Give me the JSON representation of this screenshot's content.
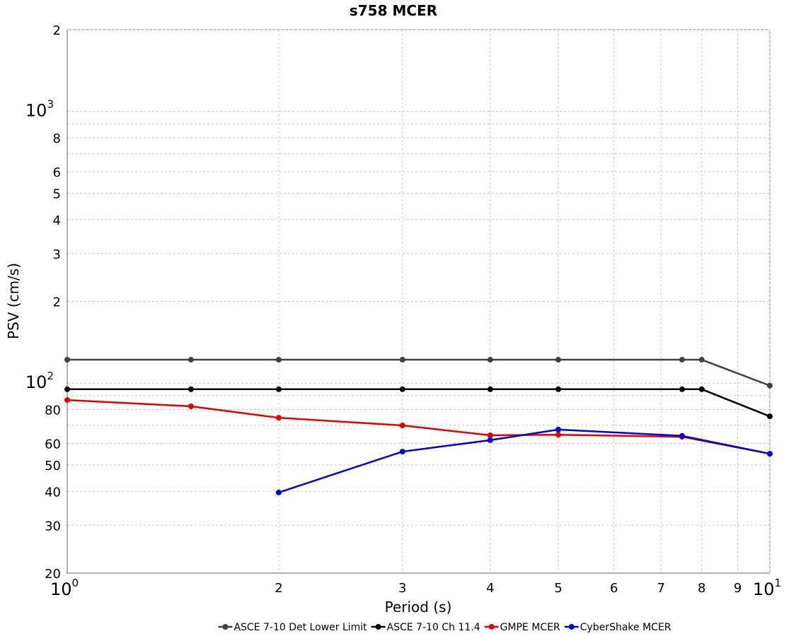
{
  "chart_data": {
    "type": "line",
    "title": "s758 MCER",
    "xlabel": "Period (s)",
    "ylabel": "PSV (cm/s)",
    "xscale": "log",
    "yscale": "log",
    "grid": true,
    "legend": "bottom",
    "xlim": [
      1,
      10
    ],
    "ylim": [
      20,
      2000
    ],
    "xticks": [
      {
        "value": 1,
        "label": "10",
        "sup": "0"
      },
      2,
      3,
      4,
      5,
      6,
      7,
      8,
      9,
      {
        "value": 10,
        "label": "10",
        "sup": "1"
      }
    ],
    "yticks": [
      20,
      30,
      40,
      50,
      60,
      80,
      {
        "value": 100,
        "label": "10",
        "sup": "2"
      },
      {
        "value": 200,
        "label": "2"
      },
      {
        "value": 300,
        "label": "3"
      },
      {
        "value": 400,
        "label": "4"
      },
      {
        "value": 500,
        "label": "5"
      },
      {
        "value": 600,
        "label": "6"
      },
      {
        "value": 800,
        "label": "8"
      },
      {
        "value": 1000,
        "label": "10",
        "sup": "3"
      },
      {
        "value": 2000,
        "label": "2"
      }
    ],
    "yminorticks": [
      70,
      90,
      700,
      900
    ],
    "series": [
      {
        "name": "ASCE 7-10 Det Lower Limit",
        "color": "#404040",
        "x": [
          1,
          1.5,
          2,
          3,
          4,
          5,
          7.5,
          8,
          10
        ],
        "values": [
          122,
          122,
          122,
          122,
          122,
          122,
          122,
          122,
          98
        ]
      },
      {
        "name": "ASCE 7-10 Ch 11.4",
        "color": "#000000",
        "x": [
          1,
          1.5,
          2,
          3,
          4,
          5,
          7.5,
          8,
          10
        ],
        "values": [
          95,
          95,
          95,
          95,
          95,
          95,
          95,
          95,
          75.5
        ]
      },
      {
        "name": "GMPE MCER",
        "color": "#e00000",
        "x": [
          1,
          1.5,
          2,
          3,
          4,
          5,
          7.5,
          10
        ],
        "values": [
          86.7,
          82.2,
          74.6,
          69.9,
          64.3,
          64.6,
          63.5,
          55.0
        ]
      },
      {
        "name": "CyberShake MCER",
        "color": "#0000d0",
        "x": [
          2,
          3,
          4,
          5,
          7.5,
          10
        ],
        "values": [
          39.6,
          56.0,
          61.7,
          67.5,
          64.0,
          55.0
        ]
      }
    ]
  }
}
